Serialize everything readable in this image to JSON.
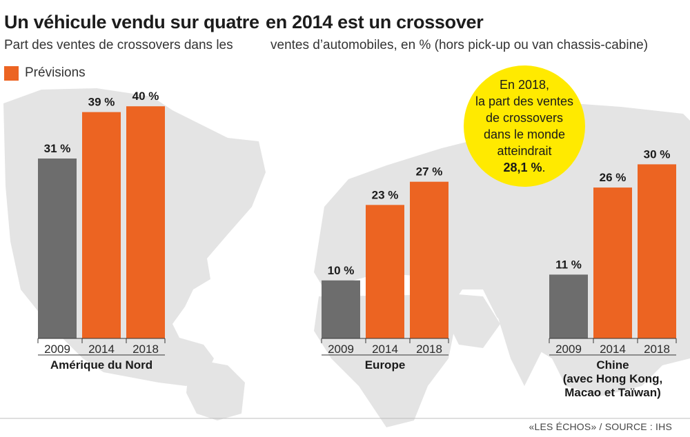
{
  "header": {
    "title_left": "Un véhicule vendu sur quatre",
    "title_right": "en 2014 est un crossover",
    "subtitle_left": "Part des ventes de crossovers dans les",
    "subtitle_right": "ventes  d’automobiles, en % (hors pick-up ou van chassis-cabine)"
  },
  "legend": {
    "label": "Prévisions",
    "color": "#ec6422"
  },
  "callout": {
    "lines": [
      "En 2018,",
      "la part des ventes",
      "de crossovers",
      "dans le monde",
      "atteindrait"
    ],
    "value_bold": "28,1 %",
    "value_suffix": ".",
    "color": "#ffea00"
  },
  "source": "«LES ÉCHOS» / SOURCE : IHS",
  "colors": {
    "actual": "#6d6d6d",
    "forecast": "#ec6422",
    "map": "#e4e4e4"
  },
  "chart_data": [
    {
      "type": "bar",
      "group_label": [
        "Amérique du Nord"
      ],
      "categories": [
        "2009",
        "2014",
        "2018"
      ],
      "values": [
        31,
        39,
        40
      ],
      "value_labels": [
        "31 %",
        "39 %",
        "40 %"
      ],
      "forecast": [
        false,
        true,
        true
      ]
    },
    {
      "type": "bar",
      "group_label": [
        "Europe"
      ],
      "categories": [
        "2009",
        "2014",
        "2018"
      ],
      "values": [
        10,
        23,
        27
      ],
      "value_labels": [
        "10 %",
        "23 %",
        "27 %"
      ],
      "forecast": [
        false,
        true,
        true
      ]
    },
    {
      "type": "bar",
      "group_label": [
        "Chine",
        "(avec Hong Kong,",
        "Macao et Taïwan)"
      ],
      "categories": [
        "2009",
        "2014",
        "2018"
      ],
      "values": [
        11,
        26,
        30
      ],
      "value_labels": [
        "11 %",
        "26 %",
        "30 %"
      ],
      "forecast": [
        false,
        true,
        true
      ]
    }
  ]
}
